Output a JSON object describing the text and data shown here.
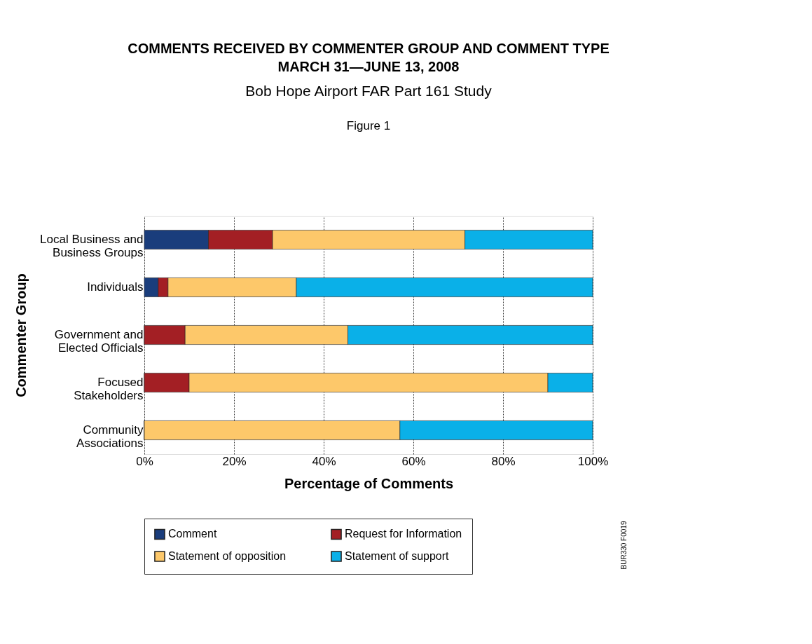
{
  "chart_data": {
    "type": "bar",
    "orientation": "horizontal",
    "stacked": true,
    "title": "COMMENTS RECEIVED BY COMMENTER GROUP AND  COMMENT TYPE\nMARCH 31—JUNE 13, 2008",
    "subtitle": "Bob Hope Airport FAR Part 161 Study",
    "xlabel": "Percentage of Comments",
    "ylabel": "Commenter Group",
    "categories": [
      "Local Business and\nBusiness Groups",
      "Individuals",
      "Government and\nElected Officials",
      "Focused\nStakeholders",
      "Community\nAssociations"
    ],
    "series": [
      {
        "name": "Comment",
        "color": "#1a3d7c",
        "values": [
          14.3,
          3.1,
          0,
          0,
          0
        ]
      },
      {
        "name": "Request for Information",
        "color": "#a31f24",
        "values": [
          14.3,
          2.2,
          9.1,
          10,
          0
        ]
      },
      {
        "name": "Statement of opposition",
        "color": "#fdc86a",
        "values": [
          42.9,
          28.6,
          36.3,
          80,
          57
        ]
      },
      {
        "name": "Statement of support",
        "color": "#0ab0e8",
        "values": [
          28.5,
          66.1,
          54.6,
          10,
          43
        ]
      }
    ],
    "xlim": [
      0,
      100
    ],
    "xticks": [
      {
        "value": 0,
        "label": "0%"
      },
      {
        "value": 20,
        "label": "20%"
      },
      {
        "value": 40,
        "label": "40%"
      },
      {
        "value": 60,
        "label": "60%"
      },
      {
        "value": 80,
        "label": "80%"
      },
      {
        "value": 100,
        "label": "100%"
      }
    ],
    "grid": "x",
    "legend": "bottom",
    "annotations": [
      "Figure 1",
      "BUR330 F0019"
    ]
  }
}
